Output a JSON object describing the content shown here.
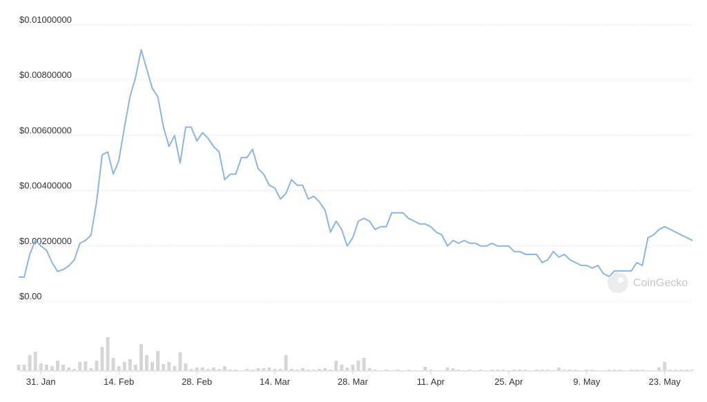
{
  "chart_data": {
    "type": "line",
    "watermark": "CoinGecko",
    "color": "#8ab4e4",
    "volume_color": "#d6d6d6",
    "grid": true,
    "ylim": [
      0,
      0.01
    ],
    "yticks": [
      {
        "value": 0,
        "label": "$0.00"
      },
      {
        "value": 0.002,
        "label": "$0.00200000"
      },
      {
        "value": 0.004,
        "label": "$0.00400000"
      },
      {
        "value": 0.006,
        "label": "$0.00600000"
      },
      {
        "value": 0.008,
        "label": "$0.00800000"
      },
      {
        "value": 0.01,
        "label": "$0.01000000"
      }
    ],
    "categories": [
      null,
      null,
      null,
      null,
      "31. Jan",
      null,
      null,
      null,
      null,
      null,
      null,
      null,
      null,
      null,
      null,
      null,
      null,
      null,
      "14. Feb",
      null,
      null,
      null,
      null,
      null,
      null,
      null,
      null,
      null,
      null,
      null,
      null,
      null,
      "28. Feb",
      null,
      null,
      null,
      null,
      null,
      null,
      null,
      null,
      null,
      null,
      null,
      null,
      null,
      "14. Mar",
      null,
      null,
      null,
      null,
      null,
      null,
      null,
      null,
      null,
      null,
      null,
      null,
      null,
      "28. Mar",
      null,
      null,
      null,
      null,
      null,
      null,
      null,
      null,
      null,
      null,
      null,
      null,
      null,
      "11. Apr",
      null,
      null,
      null,
      null,
      null,
      null,
      null,
      null,
      null,
      null,
      null,
      null,
      null,
      "25. Apr",
      null,
      null,
      null,
      null,
      null,
      null,
      null,
      null,
      null,
      null,
      null,
      null,
      null,
      "9. May",
      null,
      null,
      null,
      null,
      null,
      null,
      null,
      null,
      null,
      null,
      null,
      null,
      null,
      "23. May",
      null,
      null,
      null,
      null,
      null
    ],
    "values": [
      0.000875,
      0.000875,
      0.0017,
      0.0022,
      0.002,
      0.00185,
      0.0014,
      0.00108,
      0.00115,
      0.00128,
      0.0015,
      0.0021,
      0.0022,
      0.0024,
      0.0036,
      0.0053,
      0.0054,
      0.0046,
      0.0051,
      0.0063,
      0.0074,
      0.0081,
      0.0091,
      0.0084,
      0.0077,
      0.0074,
      0.0063,
      0.0056,
      0.006,
      0.005,
      0.0063,
      0.0063,
      0.0058,
      0.0061,
      0.0059,
      0.0056,
      0.0054,
      0.0044,
      0.0046,
      0.0046,
      0.0052,
      0.0052,
      0.0055,
      0.0048,
      0.0046,
      0.0042,
      0.0041,
      0.0037,
      0.0039,
      0.0044,
      0.0042,
      0.0042,
      0.0037,
      0.0038,
      0.0036,
      0.0033,
      0.0025,
      0.0029,
      0.0026,
      0.002,
      0.0023,
      0.0029,
      0.003,
      0.0029,
      0.0026,
      0.0027,
      0.0027,
      0.0032,
      0.0032,
      0.0032,
      0.003,
      0.0029,
      0.0028,
      0.0028,
      0.0027,
      0.0025,
      0.0024,
      0.002,
      0.0022,
      0.0021,
      0.0022,
      0.0021,
      0.0021,
      0.002,
      0.002,
      0.0021,
      0.002,
      0.002,
      0.002,
      0.0018,
      0.0018,
      0.0017,
      0.0017,
      0.0017,
      0.0014,
      0.0015,
      0.0018,
      0.0016,
      0.0017,
      0.0015,
      0.0014,
      0.0013,
      0.0013,
      0.0012,
      0.0013,
      0.001,
      0.0009,
      0.0011,
      0.0011,
      0.0011,
      0.0011,
      0.0014,
      0.0013,
      0.0023,
      0.0024,
      0.0026,
      0.0027,
      0.0026,
      0.0025,
      0.0024,
      0.0023,
      0.0022
    ],
    "volume": [
      8,
      8,
      22,
      27,
      10,
      8,
      6,
      14,
      8,
      4,
      2,
      12,
      13,
      3,
      14,
      34,
      48,
      18,
      6,
      12,
      16,
      8,
      38,
      22,
      12,
      28,
      9,
      12,
      6,
      26,
      10,
      2,
      4,
      4,
      2,
      4,
      2,
      6,
      1,
      1,
      0,
      2,
      1,
      3,
      3,
      4,
      2,
      2,
      22,
      2,
      1,
      3,
      1,
      1,
      2,
      3,
      1,
      14,
      8,
      4,
      8,
      14,
      18,
      3,
      1,
      0,
      1,
      0,
      1,
      0,
      1,
      0,
      0,
      5,
      1,
      0,
      0,
      4,
      3,
      1,
      0,
      1,
      0,
      1,
      0,
      1,
      1,
      1,
      0,
      1,
      1,
      1,
      0,
      1,
      1,
      1,
      0,
      4,
      1,
      1,
      1,
      0,
      1,
      1,
      0,
      0,
      1,
      1,
      1,
      0,
      1,
      1,
      1,
      0,
      0,
      4,
      12,
      1,
      1,
      1,
      1,
      1
    ]
  }
}
